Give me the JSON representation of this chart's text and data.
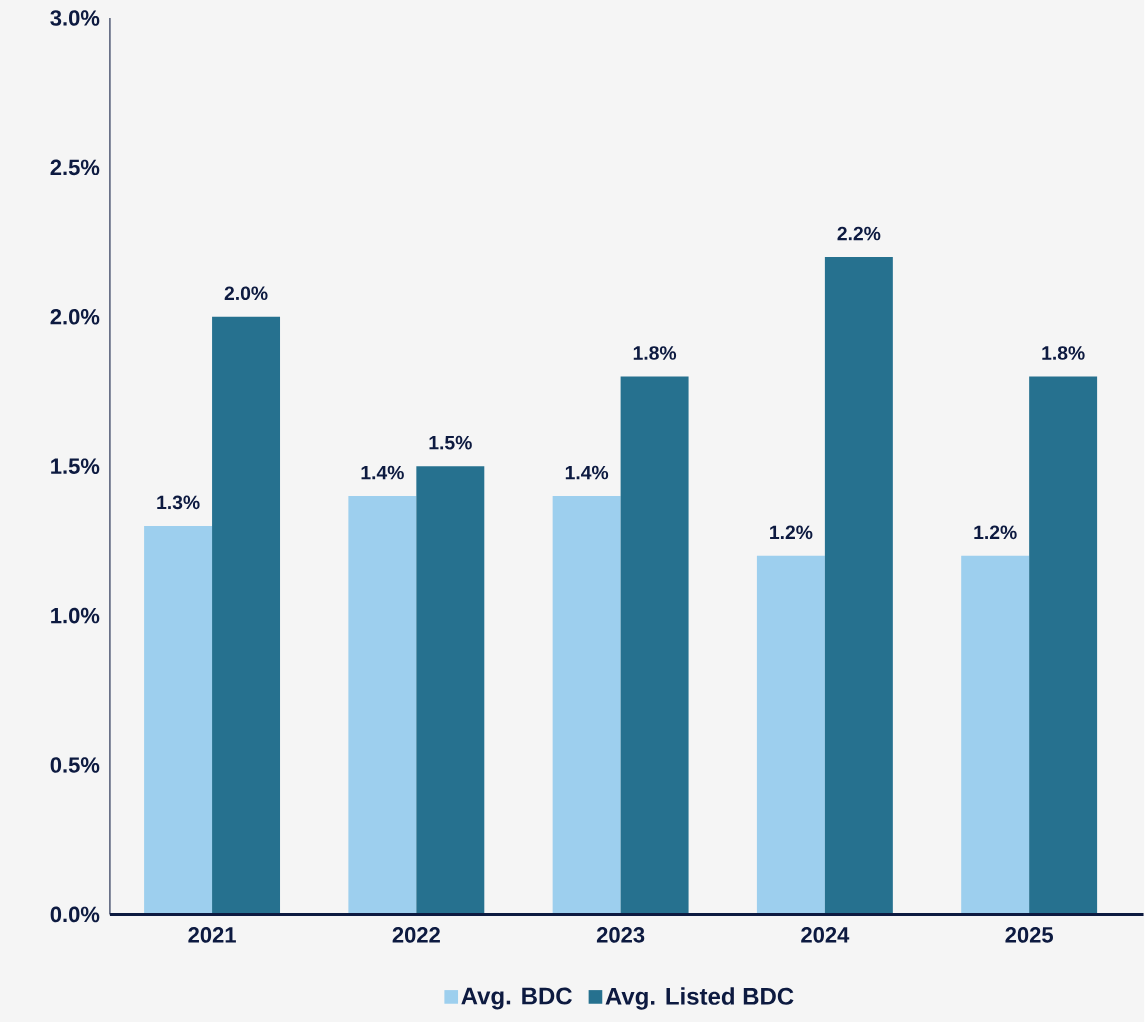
{
  "chart_data": {
    "type": "bar",
    "categories": [
      "2021",
      "2022",
      "2023",
      "2024",
      "2025"
    ],
    "series": [
      {
        "name": "Avg. BDC",
        "color": "#9dcfee",
        "values": [
          1.3,
          1.4,
          1.4,
          1.2,
          1.2
        ],
        "value_labels": [
          "1.3%",
          "1.4%",
          "1.4%",
          "1.2%",
          "1.2%"
        ]
      },
      {
        "name": "Avg. Listed BDC",
        "color": "#26718f",
        "values": [
          2.0,
          1.5,
          1.8,
          2.2,
          1.8
        ],
        "value_labels": [
          "2.0%",
          "1.5%",
          "1.8%",
          "2.2%",
          "1.8%"
        ]
      }
    ],
    "ylim": [
      0,
      3.0
    ],
    "yticks": [
      {
        "value": 0,
        "label": "0.0%"
      },
      {
        "value": 0.5,
        "label": "0.5%"
      },
      {
        "value": 1.0,
        "label": "1.0%"
      },
      {
        "value": 1.5,
        "label": "1.5%"
      },
      {
        "value": 2.0,
        "label": "2.0%"
      },
      {
        "value": 2.5,
        "label": "2.5%"
      },
      {
        "value": 3.0,
        "label": "3.0%"
      }
    ],
    "grid": false,
    "legend": "bottom"
  }
}
